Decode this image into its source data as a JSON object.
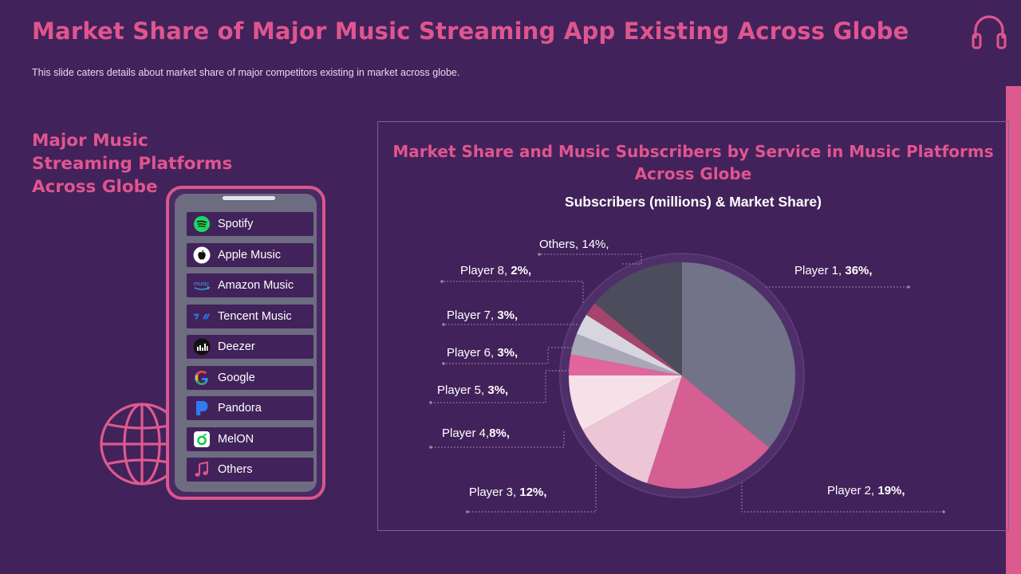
{
  "page": {
    "title": "Market Share of Major Music Streaming App Existing Across Globe",
    "subtitle": "This slide caters details about market share of major competitors existing in market across globe.",
    "left_heading": [
      "Major Music",
      "Streaming Platforms",
      "Across Globe"
    ]
  },
  "icons": {
    "header": "headphones-icon",
    "globe": "globe-icon"
  },
  "platforms": [
    {
      "label": "Spotify",
      "icon": "spotify-icon",
      "color": "#1ed760"
    },
    {
      "label": "Apple Music",
      "icon": "apple-icon",
      "color": "#ffffff"
    },
    {
      "label": "Amazon Music",
      "icon": "amazon-music-icon",
      "color": "#3aa3e6"
    },
    {
      "label": "Tencent Music",
      "icon": "tencent-music-icon",
      "color": "#2f6fe0"
    },
    {
      "label": "Deezer",
      "icon": "deezer-icon",
      "color": "#111111"
    },
    {
      "label": "Google",
      "icon": "google-icon",
      "color": "#4285f4"
    },
    {
      "label": "Pandora",
      "icon": "pandora-icon",
      "color": "#2f7bf5"
    },
    {
      "label": "MelON",
      "icon": "melon-icon",
      "color": "#00cd3c"
    },
    {
      "label": "Others",
      "icon": "music-note-icon",
      "color": "#e0558f"
    }
  ],
  "colors": {
    "background": "#42225a",
    "accent": "#e0558f",
    "phone_screen": "#6d6c81"
  },
  "chart_data": {
    "type": "pie",
    "title": "Market Share and Music Subscribers by Service in Music Platforms Across Globe",
    "subtitle": "Subscribers (millions) & Market Share)",
    "start": "12 o'clock, clockwise",
    "slices": [
      {
        "prefix": "Player 1, ",
        "value": 36,
        "value_text": "36%,",
        "color": "#727389"
      },
      {
        "prefix": "Player 2, ",
        "value": 19,
        "value_text": "19%,",
        "color": "#d55f92"
      },
      {
        "prefix": "Player 3, ",
        "value": 12,
        "value_text": "12%,",
        "color": "#ecc6d5"
      },
      {
        "prefix": "Player 4,",
        "value": 8,
        "value_text": "8%,",
        "color": "#f7e1e9"
      },
      {
        "prefix": "Player 5, ",
        "value": 3,
        "value_text": "3%,",
        "color": "#e0669b"
      },
      {
        "prefix": "Player 6, ",
        "value": 3,
        "value_text": "3%,",
        "color": "#a8a8b8"
      },
      {
        "prefix": "Player 7, ",
        "value": 3,
        "value_text": "3%,",
        "color": "#d7d6df"
      },
      {
        "prefix": "Player 8, ",
        "value": 2,
        "value_text": "2%,",
        "color": "#a5456c"
      },
      {
        "prefix": "Others, ",
        "value": 14,
        "value_text": "14%,",
        "value_bold": false,
        "color": "#4c4c5c"
      }
    ]
  }
}
